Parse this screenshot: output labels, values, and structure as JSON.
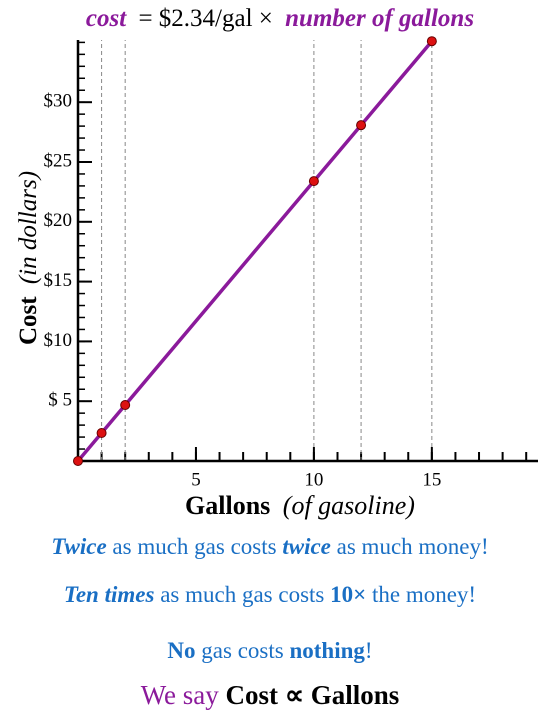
{
  "chart_data": {
    "type": "line",
    "title": [
      "cost",
      "= $2.34/gal ×",
      "number of gallons"
    ],
    "y_label": [
      "Cost",
      "(in dollars)"
    ],
    "x_label": [
      "Gallons",
      "(of gasoline)"
    ],
    "x": [
      0,
      1,
      2,
      10,
      12,
      15
    ],
    "series": [
      {
        "color": "#8b1a9b",
        "marker_color": "#dd1111",
        "values": [
          0,
          2.34,
          4.68,
          23.4,
          28.08,
          35.1
        ]
      }
    ],
    "xlim": [
      0,
      19.5
    ],
    "ylim": [
      0,
      35.2
    ],
    "xticks": [
      5,
      10,
      15
    ],
    "yticks": [
      {
        "value": 5,
        "label": "$ 5"
      },
      {
        "value": 10,
        "label": "$10"
      },
      {
        "value": 15,
        "label": "$15"
      },
      {
        "value": 20,
        "label": "$20"
      },
      {
        "value": 25,
        "label": "$25"
      },
      {
        "value": 30,
        "label": "$30"
      }
    ]
  },
  "notes": [
    [
      "Twice",
      " as much gas costs ",
      "twice",
      " as much money!"
    ],
    [
      "Ten times",
      " as much gas costs ",
      "10×",
      " the money!"
    ],
    [
      "No",
      " gas costs ",
      "nothing",
      "!"
    ],
    [
      "We say ",
      "Cost ∝ Gallons"
    ]
  ]
}
